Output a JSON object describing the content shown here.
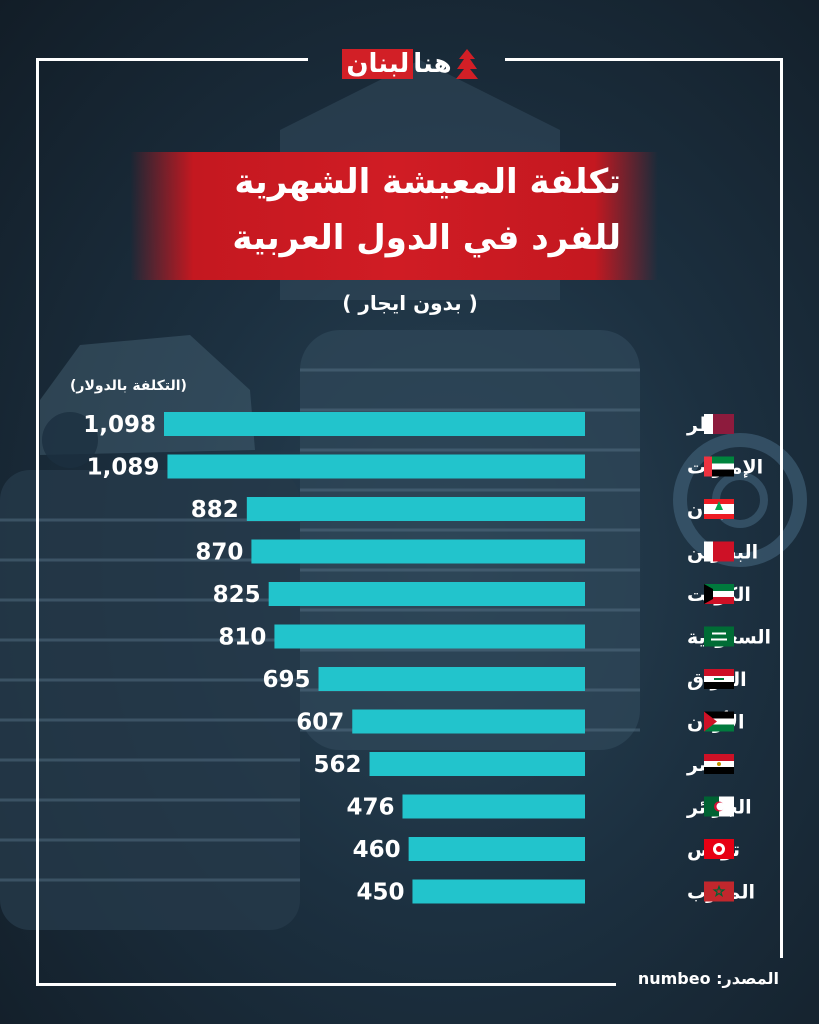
{
  "brand": {
    "logo_text_part1": "هنا",
    "logo_text_part2": "لبنان"
  },
  "title": {
    "line1": "تكلفة المعيشة الشهرية",
    "line2": "للفرد في الدول العربية"
  },
  "subtitle": "( بدون ايجار )",
  "unit_note": "(التكلفة بالدولار)",
  "source": {
    "label": "المصدر:",
    "value": "numbeo"
  },
  "colors": {
    "bar": "#22c4cc",
    "title_bg": "#d01c24",
    "text": "#ffffff",
    "background": "#1c3040"
  },
  "chart_data": {
    "type": "bar",
    "orientation": "horizontal",
    "categories": [
      "قطر",
      "الإمارات",
      "لبنان",
      "البحرين",
      "الكويت",
      "السعودية",
      "العراق",
      "الأردن",
      "مصر",
      "الجزائر",
      "تونس",
      "المغرب"
    ],
    "values": [
      1098,
      1089,
      882,
      870,
      825,
      810,
      695,
      607,
      562,
      476,
      460,
      450
    ],
    "value_labels": [
      "1,098",
      "1,089",
      "882",
      "870",
      "825",
      "810",
      "695",
      "607",
      "562",
      "476",
      "460",
      "450"
    ],
    "flags": [
      "qatar-flag",
      "uae-flag",
      "lebanon-flag",
      "bahrain-flag",
      "kuwait-flag",
      "saudi-flag",
      "iraq-flag",
      "jordan-flag",
      "egypt-flag",
      "algeria-flag",
      "tunisia-flag",
      "morocco-flag"
    ],
    "title": "تكلفة المعيشة الشهرية للفرد في الدول العربية",
    "ylabel": "(التكلفة بالدولار)",
    "xlim": [
      0,
      1098
    ]
  }
}
